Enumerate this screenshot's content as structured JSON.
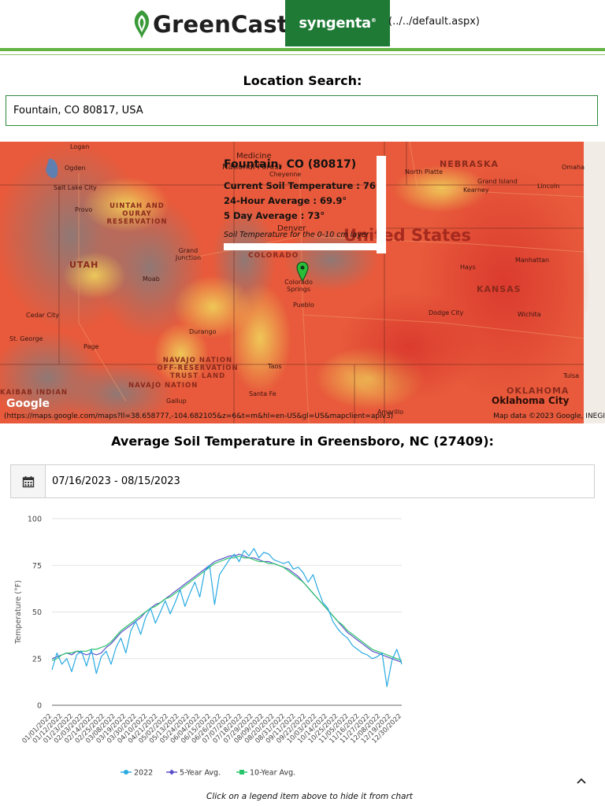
{
  "header": {
    "brand": "GreenCast",
    "partner": "syngenta",
    "broken_link_text": "(../../default.aspx)"
  },
  "location_search": {
    "title": "Location Search:",
    "value": "Fountain, CO 80817, USA"
  },
  "map": {
    "country_label": "United States",
    "states": [
      "NEBRASKA",
      "UTAH",
      "COLORADO",
      "KANSAS",
      "OKLAHOMA"
    ],
    "cities": [
      "Logan",
      "Ogden",
      "Salt Lake City",
      "Provo",
      "Medicine",
      "National Forest",
      "Cheyenne",
      "North Platte",
      "Grand Island",
      "Kearney",
      "Lincoln",
      "Omaha",
      "Denver",
      "Grand Junction",
      "Moab",
      "Colorado Springs",
      "Pueblo",
      "Hays",
      "Manhattan",
      "Dodge City",
      "Wichita",
      "Cedar City",
      "St. George",
      "Page",
      "Durango",
      "Taos",
      "Santa Fe",
      "Gallup",
      "Amarillo",
      "Tulsa",
      "Oklahoma City"
    ],
    "regions": [
      "UINTAH AND OURAY RESERVATION",
      "NAVAJO NATION OFF-RESERVATION TRUST LAND",
      "NAVAJO NATION",
      "KAIBAB INDIAN"
    ],
    "info": {
      "title": "Fountain, CO (80817)",
      "current": "Current Soil Temperature : 76°",
      "avg24": "24-Hour Average : 69.9°",
      "avg5": "5 Day Average : 73°",
      "note": "Soil Temperature for the 0-10 cm layer"
    },
    "google": "Google",
    "url_text": "(https://maps.google.com/maps?ll=38.658777,-104.682105&z=6&t=m&hl=en-US&gl=US&mapclient=apiv3)",
    "credit": "Map data ©2023 Google, INEGI"
  },
  "average": {
    "title": "Average Soil Temperature in Greensboro, NC (27409):",
    "date_range": "07/16/2023 - 08/15/2023"
  },
  "chart_data": {
    "type": "line",
    "ylabel": "Temperature (°F)",
    "ylim": [
      0,
      100
    ],
    "yticks": [
      0,
      25,
      50,
      75,
      100
    ],
    "x_tick_labels": [
      "01/01/2022",
      "01/12/2022",
      "01/23/2022",
      "02/03/2022",
      "02/14/2022",
      "02/25/2022",
      "03/08/2022",
      "03/19/2022",
      "03/30/2022",
      "04/10/2022",
      "04/21/2022",
      "05/02/2022",
      "05/13/2022",
      "05/24/2022",
      "06/04/2022",
      "06/15/2022",
      "06/26/2022",
      "07/07/2022",
      "07/18/2022",
      "07/29/2022",
      "08/09/2022",
      "08/20/2022",
      "08/31/2022",
      "09/11/2022",
      "09/22/2022",
      "10/03/2022",
      "10/14/2022",
      "10/25/2022",
      "11/05/2022",
      "11/16/2022",
      "11/27/2022",
      "12/08/2022",
      "12/19/2022",
      "12/30/2022"
    ],
    "series": [
      {
        "name": "2022",
        "color": "#29aae1",
        "values": [
          19,
          28,
          22,
          25,
          18,
          27,
          29,
          21,
          30,
          17,
          26,
          29,
          22,
          31,
          36,
          28,
          40,
          45,
          38,
          47,
          52,
          44,
          50,
          56,
          49,
          55,
          62,
          53,
          60,
          66,
          58,
          72,
          75,
          54,
          70,
          74,
          78,
          81,
          77,
          83,
          80,
          84,
          79,
          82,
          81,
          78,
          77,
          76,
          77,
          73,
          74,
          71,
          66,
          70,
          62,
          55,
          52,
          45,
          41,
          38,
          36,
          32,
          30,
          28,
          27,
          25,
          26,
          28,
          10,
          24,
          30,
          22
        ]
      },
      {
        "name": "5-Year Avg.",
        "color": "#5b4fc9",
        "values": [
          25,
          26,
          27,
          28,
          27,
          29,
          28,
          27,
          28,
          27,
          28,
          31,
          33,
          36,
          39,
          41,
          43,
          45,
          47,
          50,
          52,
          54,
          55,
          57,
          59,
          61,
          63,
          65,
          67,
          69,
          71,
          73,
          75,
          77,
          78,
          79,
          80,
          80,
          81,
          80,
          79,
          79,
          78,
          77,
          77,
          76,
          75,
          74,
          73,
          71,
          69,
          66,
          63,
          60,
          57,
          54,
          51,
          48,
          45,
          42,
          39,
          37,
          35,
          33,
          31,
          29,
          28,
          27,
          26,
          25,
          24,
          23
        ]
      },
      {
        "name": "10-Year Avg.",
        "color": "#28c46a",
        "values": [
          24,
          25,
          27,
          28,
          28,
          29,
          29,
          29,
          30,
          30,
          31,
          32,
          34,
          37,
          40,
          42,
          44,
          46,
          48,
          50,
          52,
          53,
          55,
          57,
          58,
          60,
          62,
          64,
          66,
          68,
          70,
          72,
          74,
          76,
          77,
          78,
          79,
          79,
          80,
          79,
          79,
          78,
          77,
          77,
          76,
          76,
          75,
          74,
          72,
          70,
          68,
          66,
          63,
          60,
          57,
          54,
          51,
          48,
          45,
          43,
          40,
          38,
          36,
          34,
          32,
          30,
          29,
          28,
          27,
          26,
          25,
          24
        ]
      }
    ]
  },
  "chart_note": "Click on a legend item above to hide it from chart",
  "scroll_top": "^"
}
